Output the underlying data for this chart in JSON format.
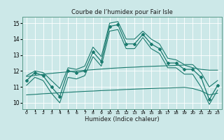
{
  "title": "Courbe de l’humidex pour Fair Isle",
  "xlabel": "Humidex (Indice chaleur)",
  "bg_color": "#cce8e8",
  "grid_color": "#ffffff",
  "line_color": "#1a7a6e",
  "xlim": [
    -0.5,
    23.5
  ],
  "ylim": [
    9.6,
    15.4
  ],
  "yticks": [
    10,
    11,
    12,
    13,
    14,
    15
  ],
  "xticks": [
    0,
    1,
    2,
    3,
    4,
    5,
    6,
    7,
    8,
    9,
    10,
    11,
    12,
    13,
    14,
    15,
    16,
    17,
    18,
    19,
    20,
    21,
    22,
    23
  ],
  "main_x": [
    0,
    1,
    2,
    3,
    4,
    5,
    6,
    7,
    8,
    9,
    10,
    11,
    12,
    13,
    14,
    15,
    16,
    17,
    18,
    19,
    20,
    21,
    22,
    23
  ],
  "main_y": [
    11.4,
    11.9,
    11.7,
    11.0,
    10.4,
    12.0,
    11.9,
    12.0,
    13.2,
    12.6,
    14.8,
    14.9,
    13.7,
    13.7,
    14.3,
    13.7,
    13.4,
    12.5,
    12.5,
    12.1,
    12.1,
    11.6,
    10.2,
    11.1
  ],
  "upper_y": [
    11.7,
    12.0,
    11.9,
    11.4,
    10.9,
    12.2,
    12.1,
    12.3,
    13.5,
    12.9,
    15.0,
    15.1,
    14.0,
    14.0,
    14.5,
    14.0,
    13.7,
    12.8,
    12.7,
    12.4,
    12.4,
    11.9,
    11.0,
    11.4
  ],
  "lower_y": [
    11.1,
    11.6,
    11.4,
    10.6,
    10.0,
    11.6,
    11.5,
    11.7,
    12.9,
    12.3,
    14.5,
    14.6,
    13.4,
    13.4,
    14.1,
    13.4,
    13.1,
    12.2,
    12.2,
    11.8,
    11.8,
    11.0,
    9.9,
    10.8
  ],
  "flat1_y": [
    11.65,
    11.72,
    11.79,
    11.85,
    11.9,
    11.95,
    12.0,
    12.04,
    12.08,
    12.12,
    12.16,
    12.19,
    12.22,
    12.24,
    12.27,
    12.29,
    12.31,
    12.33,
    12.35,
    12.37,
    12.2,
    12.1,
    12.05,
    12.05
  ],
  "flat2_y": [
    10.5,
    10.53,
    10.57,
    10.6,
    10.63,
    10.66,
    10.69,
    10.72,
    10.74,
    10.77,
    10.79,
    10.81,
    10.84,
    10.86,
    10.88,
    10.9,
    10.92,
    10.93,
    10.95,
    10.97,
    10.9,
    10.75,
    10.5,
    10.6
  ]
}
